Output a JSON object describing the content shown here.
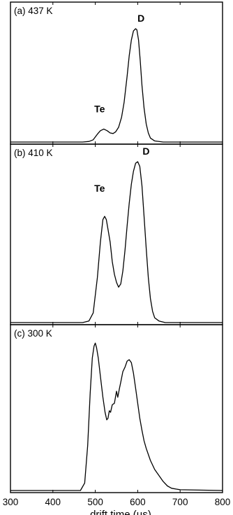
{
  "chart_data": {
    "type": "line",
    "xlabel": "drift time (µs)",
    "xlim": [
      300,
      800
    ],
    "x_ticks": [
      "300",
      "400",
      "500",
      "600",
      "700",
      "800"
    ],
    "panels": [
      {
        "label": "(a) 437 K",
        "annotations": [
          {
            "text": "Te",
            "x": 520,
            "y": 0.2
          },
          {
            "text": "D",
            "x": 598,
            "y": 1.0
          }
        ],
        "series": [
          {
            "x": [
              300,
              470,
              485,
              495,
              505,
              512,
              520,
              528,
              535,
              542,
              548,
              555,
              562,
              568,
              575,
              580,
              585,
              590,
              595,
              598,
              602,
              606,
              610,
              615,
              620,
              625,
              630,
              640,
              660,
              800
            ],
            "y": [
              0,
              0,
              0.005,
              0.02,
              0.07,
              0.1,
              0.115,
              0.1,
              0.08,
              0.075,
              0.09,
              0.13,
              0.22,
              0.35,
              0.58,
              0.76,
              0.9,
              0.98,
              1.0,
              0.99,
              0.9,
              0.72,
              0.5,
              0.3,
              0.16,
              0.08,
              0.035,
              0.01,
              0,
              0
            ]
          }
        ]
      },
      {
        "label": "(b) 410 K",
        "annotations": [
          {
            "text": "Te",
            "x": 520,
            "y": 0.77
          },
          {
            "text": "D",
            "x": 610,
            "y": 1.0
          }
        ],
        "series": [
          {
            "x": [
              300,
              470,
              485,
              495,
              505,
              512,
              518,
              522,
              526,
              530,
              535,
              540,
              545,
              550,
              555,
              560,
              565,
              570,
              575,
              580,
              585,
              590,
              595,
              600,
              605,
              610,
              615,
              620,
              625,
              630,
              635,
              640,
              650,
              665,
              800
            ],
            "y": [
              0,
              0,
              0.01,
              0.06,
              0.28,
              0.5,
              0.64,
              0.66,
              0.64,
              0.58,
              0.5,
              0.38,
              0.3,
              0.25,
              0.22,
              0.24,
              0.32,
              0.45,
              0.6,
              0.74,
              0.86,
              0.94,
              0.99,
              1.0,
              0.97,
              0.85,
              0.66,
              0.46,
              0.28,
              0.15,
              0.07,
              0.03,
              0.01,
              0,
              0
            ]
          }
        ]
      },
      {
        "label": "(c) 300 K",
        "series": [
          {
            "x": [
              300,
              465,
              475,
              482,
              488,
              493,
              497,
              500,
              503,
              507,
              512,
              518,
              523,
              527,
              530,
              533,
              536,
              540,
              545,
              550,
              553,
              557,
              560,
              565,
              570,
              575,
              580,
              585,
              590,
              595,
              600,
              605,
              610,
              615,
              620,
              630,
              640,
              650,
              660,
              670,
              680,
              700,
              800
            ],
            "y": [
              0,
              0,
              0.05,
              0.3,
              0.65,
              0.88,
              0.96,
              0.98,
              0.95,
              0.88,
              0.76,
              0.62,
              0.52,
              0.47,
              0.48,
              0.53,
              0.52,
              0.57,
              0.58,
              0.66,
              0.62,
              0.68,
              0.72,
              0.79,
              0.82,
              0.86,
              0.87,
              0.85,
              0.78,
              0.68,
              0.58,
              0.48,
              0.4,
              0.33,
              0.28,
              0.2,
              0.14,
              0.1,
              0.06,
              0.03,
              0.015,
              0.005,
              0
            ]
          }
        ]
      }
    ]
  }
}
